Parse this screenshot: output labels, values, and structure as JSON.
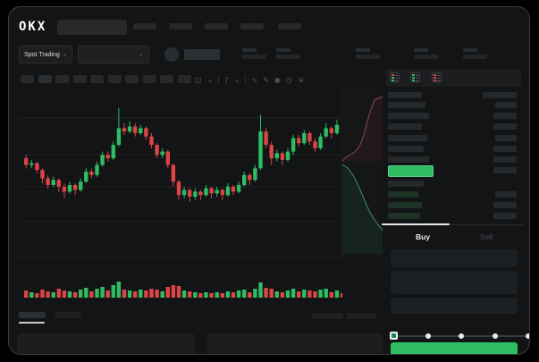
{
  "brand": {
    "logo_text": "OKX"
  },
  "header": {
    "nav_placeholder_count": 5
  },
  "market_bar": {
    "pair_label": "Spot Trading",
    "pair_chevron": "⌄",
    "dropdown_chevron": "⌄",
    "stat_pair_count": 5
  },
  "chart": {
    "toolbar": {
      "timeframe_button_count": 10,
      "icon_glyphs": {
        "candle-style-icon": "◫",
        "chevron-down-icon": "⌄",
        "indicator-icon": "ƒ",
        "line-tool-icon": "∿",
        "draw-icon": "✎",
        "camera-icon": "◉",
        "timer-icon": "◷",
        "fullscreen-icon": "⇲"
      }
    },
    "colors": {
      "up": "#2ebd63",
      "down": "#dc4446",
      "grid": "#1d2022"
    }
  },
  "chart_data": {
    "type": "candlestick",
    "title": "",
    "xlabel": "",
    "ylabel": "",
    "note": "no axis tick labels visible; prices in relative 0-100 units read from candle geometry",
    "candles": [
      [
        62,
        58,
        64,
        56
      ],
      [
        58,
        59,
        61,
        56
      ],
      [
        59,
        55,
        60,
        53
      ],
      [
        55,
        50,
        56,
        47
      ],
      [
        50,
        46,
        52,
        44
      ],
      [
        46,
        49,
        51,
        45
      ],
      [
        49,
        45,
        50,
        42
      ],
      [
        45,
        42,
        47,
        38
      ],
      [
        42,
        46,
        48,
        41
      ],
      [
        46,
        43,
        47,
        40
      ],
      [
        43,
        48,
        50,
        42
      ],
      [
        48,
        54,
        56,
        47
      ],
      [
        54,
        52,
        56,
        50
      ],
      [
        52,
        58,
        60,
        51
      ],
      [
        58,
        64,
        66,
        57
      ],
      [
        64,
        62,
        66,
        60
      ],
      [
        62,
        70,
        72,
        61
      ],
      [
        70,
        80,
        92,
        69
      ],
      [
        80,
        78,
        83,
        76
      ],
      [
        78,
        81,
        84,
        77
      ],
      [
        81,
        77,
        83,
        75
      ],
      [
        77,
        80,
        82,
        76
      ],
      [
        80,
        75,
        81,
        73
      ],
      [
        75,
        70,
        77,
        68
      ],
      [
        70,
        64,
        71,
        62
      ],
      [
        64,
        66,
        68,
        62
      ],
      [
        66,
        58,
        67,
        56
      ],
      [
        58,
        48,
        59,
        45
      ],
      [
        48,
        40,
        49,
        37
      ],
      [
        40,
        43,
        45,
        38
      ],
      [
        43,
        39,
        44,
        36
      ],
      [
        39,
        42,
        44,
        37
      ],
      [
        42,
        40,
        43,
        37
      ],
      [
        40,
        44,
        46,
        39
      ],
      [
        44,
        41,
        45,
        38
      ],
      [
        41,
        43,
        45,
        39
      ],
      [
        43,
        40,
        44,
        37
      ],
      [
        40,
        45,
        47,
        39
      ],
      [
        45,
        42,
        46,
        40
      ],
      [
        42,
        46,
        48,
        41
      ],
      [
        46,
        52,
        54,
        45
      ],
      [
        52,
        49,
        53,
        46
      ],
      [
        49,
        56,
        58,
        48
      ],
      [
        56,
        78,
        88,
        55
      ],
      [
        78,
        70,
        80,
        68
      ],
      [
        70,
        62,
        72,
        58
      ],
      [
        62,
        65,
        67,
        60
      ],
      [
        65,
        61,
        66,
        58
      ],
      [
        61,
        66,
        68,
        60
      ],
      [
        66,
        74,
        76,
        64
      ],
      [
        74,
        71,
        76,
        69
      ],
      [
        71,
        77,
        79,
        70
      ],
      [
        77,
        72,
        78,
        70
      ],
      [
        72,
        68,
        74,
        66
      ],
      [
        68,
        75,
        77,
        67
      ],
      [
        75,
        80,
        83,
        74
      ],
      [
        80,
        77,
        81,
        74
      ],
      [
        77,
        82,
        85,
        76
      ],
      [
        82,
        79,
        84,
        77
      ]
    ],
    "volumes": [
      8,
      6,
      5,
      9,
      7,
      6,
      10,
      8,
      7,
      6,
      9,
      11,
      7,
      10,
      12,
      8,
      14,
      18,
      9,
      8,
      7,
      9,
      8,
      10,
      9,
      7,
      12,
      14,
      13,
      8,
      7,
      6,
      5,
      6,
      5,
      6,
      5,
      7,
      6,
      8,
      9,
      6,
      10,
      17,
      11,
      10,
      7,
      6,
      8,
      10,
      7,
      9,
      8,
      7,
      9,
      10,
      6,
      8,
      5
    ],
    "legend": [],
    "grid": "horizontal-faint"
  },
  "depth_panel": {
    "ask_color": "#dc4446",
    "bid_color": "#2ebd63"
  },
  "orderbook": {
    "view_icons": [
      "orderbook-both-icon",
      "orderbook-bids-icon",
      "orderbook-asks-icon"
    ],
    "header": {
      "left_w": 38,
      "right_w": 38
    },
    "ask_rows": [
      {
        "l": 42,
        "r": 24
      },
      {
        "l": 46,
        "r": 26
      },
      {
        "l": 38,
        "r": 26
      },
      {
        "l": 44,
        "r": 24
      },
      {
        "l": 40,
        "r": 26
      },
      {
        "l": 46,
        "r": 26
      }
    ],
    "last_price_row": {
      "highlight": "#2ebd63",
      "r": 26
    },
    "bid_rows": [
      {
        "l": 40,
        "r": 0
      },
      {
        "l": 34,
        "r": 24
      },
      {
        "l": 38,
        "r": 26
      },
      {
        "l": 36,
        "r": 26
      }
    ]
  },
  "trade_panel": {
    "tabs": [
      {
        "label": "Buy",
        "active": true
      },
      {
        "label": "Sell",
        "active": false
      }
    ],
    "inputs": [
      {
        "h": 20
      },
      {
        "h": 26
      },
      {
        "h": 18
      }
    ],
    "slider": {
      "stop_count": 5,
      "selected_index": 0
    },
    "submit_color": "#2ebd63"
  },
  "bottom_bar": {
    "tab_count": 2,
    "active_tab_index": 0,
    "right_placeholder_count": 2,
    "panel_count": 2
  }
}
